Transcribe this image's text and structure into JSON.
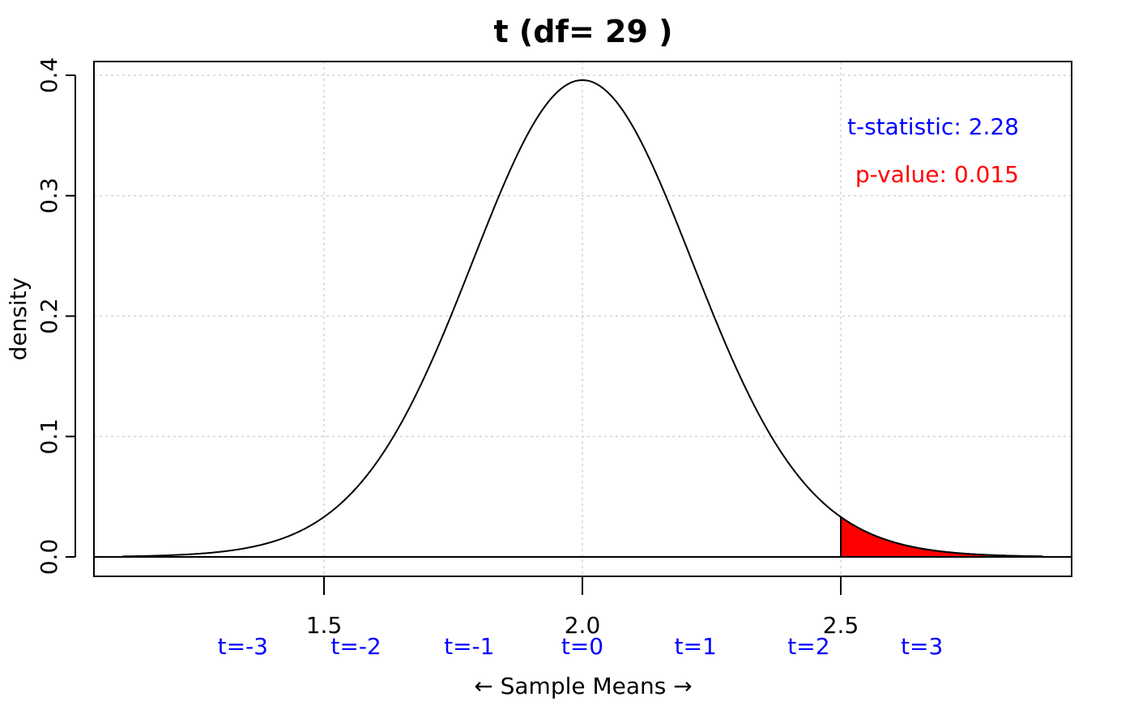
{
  "chart_data": {
    "type": "area",
    "title": "t (df= 29 )",
    "xlabel": "← Sample Means →",
    "ylabel": "density",
    "df": 29,
    "mean": 2.0,
    "std_error": 0.219,
    "xlim": [
      1.11,
      2.89
    ],
    "ylim": [
      0.0,
      0.4
    ],
    "grid": true,
    "x_ticks": [
      1.5,
      2.0,
      2.5
    ],
    "x_tick_labels": [
      "1.5",
      "2.0",
      "2.5"
    ],
    "y_ticks": [
      0.0,
      0.1,
      0.2,
      0.3,
      0.4
    ],
    "y_tick_labels": [
      "0.0",
      "0.1",
      "0.2",
      "0.3",
      "0.4"
    ],
    "t_labels": [
      {
        "t": -3,
        "x": 1.343,
        "label": "t=-3"
      },
      {
        "t": -2,
        "x": 1.562,
        "label": "t=-2"
      },
      {
        "t": -1,
        "x": 1.781,
        "label": "t=-1"
      },
      {
        "t": 0,
        "x": 2.0,
        "label": "t=0"
      },
      {
        "t": 1,
        "x": 2.219,
        "label": "t=1"
      },
      {
        "t": 2,
        "x": 2.438,
        "label": "t=2"
      },
      {
        "t": 3,
        "x": 2.657,
        "label": "t=3"
      }
    ],
    "shaded_region": {
      "from_x": 2.5,
      "to_x": 2.89,
      "color": "#ff0000"
    },
    "annotations": {
      "t_statistic": "t-statistic: 2.28",
      "p_value": "p-value: 0.015"
    },
    "colors": {
      "curve": "#000000",
      "t_labels": "#0000ff",
      "t_statistic": "#0000ff",
      "p_value": "#ff0000",
      "grid": "#d3d3d3"
    }
  }
}
